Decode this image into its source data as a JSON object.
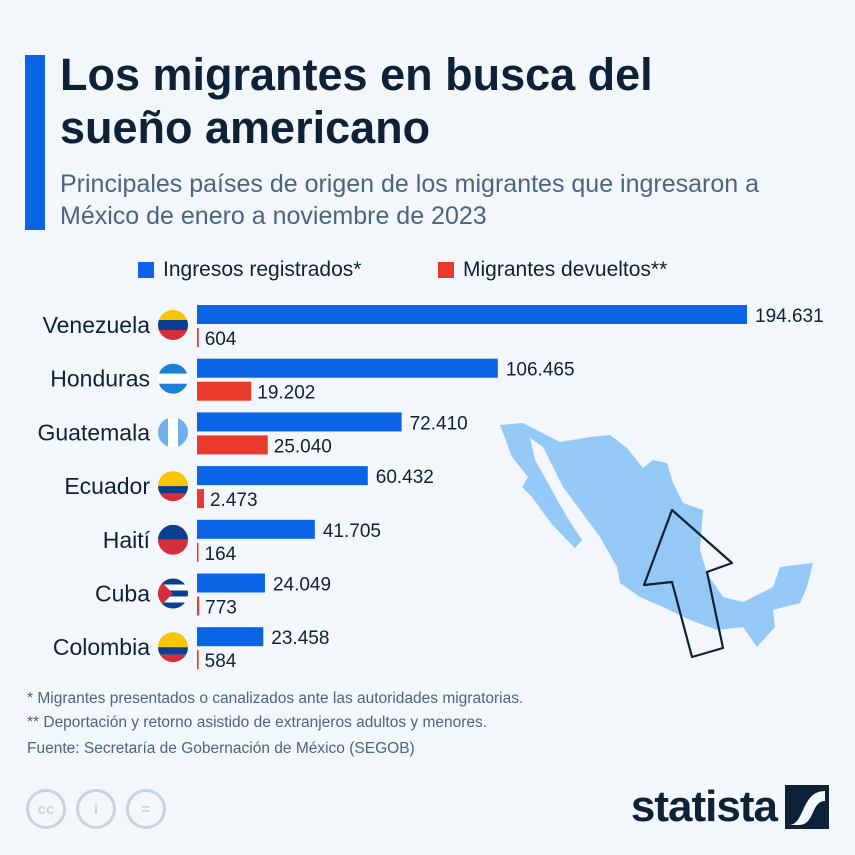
{
  "title": "Los migrantes en busca del sueño americano",
  "subtitle": "Principales países de origen de los migrantes que ingresaron a México de enero a noviembre de 2023",
  "colors": {
    "ingresos": "#0b63e5",
    "devueltos": "#e8392c",
    "map": "#94c8f7",
    "accent": "#0b63e5"
  },
  "chart_data": {
    "type": "bar",
    "orientation": "horizontal",
    "categories": [
      "Venezuela",
      "Honduras",
      "Guatemala",
      "Ecuador",
      "Haití",
      "Cuba",
      "Colombia"
    ],
    "series": [
      {
        "name": "Ingresos registrados*",
        "values": [
          194631,
          106465,
          72410,
          60432,
          41705,
          24049,
          23458
        ],
        "labels": [
          "194.631",
          "106.465",
          "72.410",
          "60.432",
          "41.705",
          "24.049",
          "23.458"
        ]
      },
      {
        "name": "Migrantes devueltos**",
        "values": [
          604,
          19202,
          25040,
          2473,
          164,
          773,
          584
        ],
        "labels": [
          "604",
          "19.202",
          "25.040",
          "2.473",
          "164",
          "773",
          "584"
        ]
      }
    ],
    "legend": "top",
    "grid": false,
    "flag_icons": [
      "venezuela-flag",
      "honduras-flag",
      "guatemala-flag",
      "ecuador-flag",
      "haiti-flag",
      "cuba-flag",
      "colombia-flag"
    ]
  },
  "footnotes": [
    "*   Migrantes presentados o canalizados ante las autoridades migratorias.",
    "** Deportación y retorno asistido de extranjeros adultos y menores."
  ],
  "source": "Fuente: Secretaría de Gobernación de México (SEGOB)",
  "license_icons": {
    "cc": "cc",
    "by": "i",
    "nd": "="
  },
  "brand": "statista"
}
